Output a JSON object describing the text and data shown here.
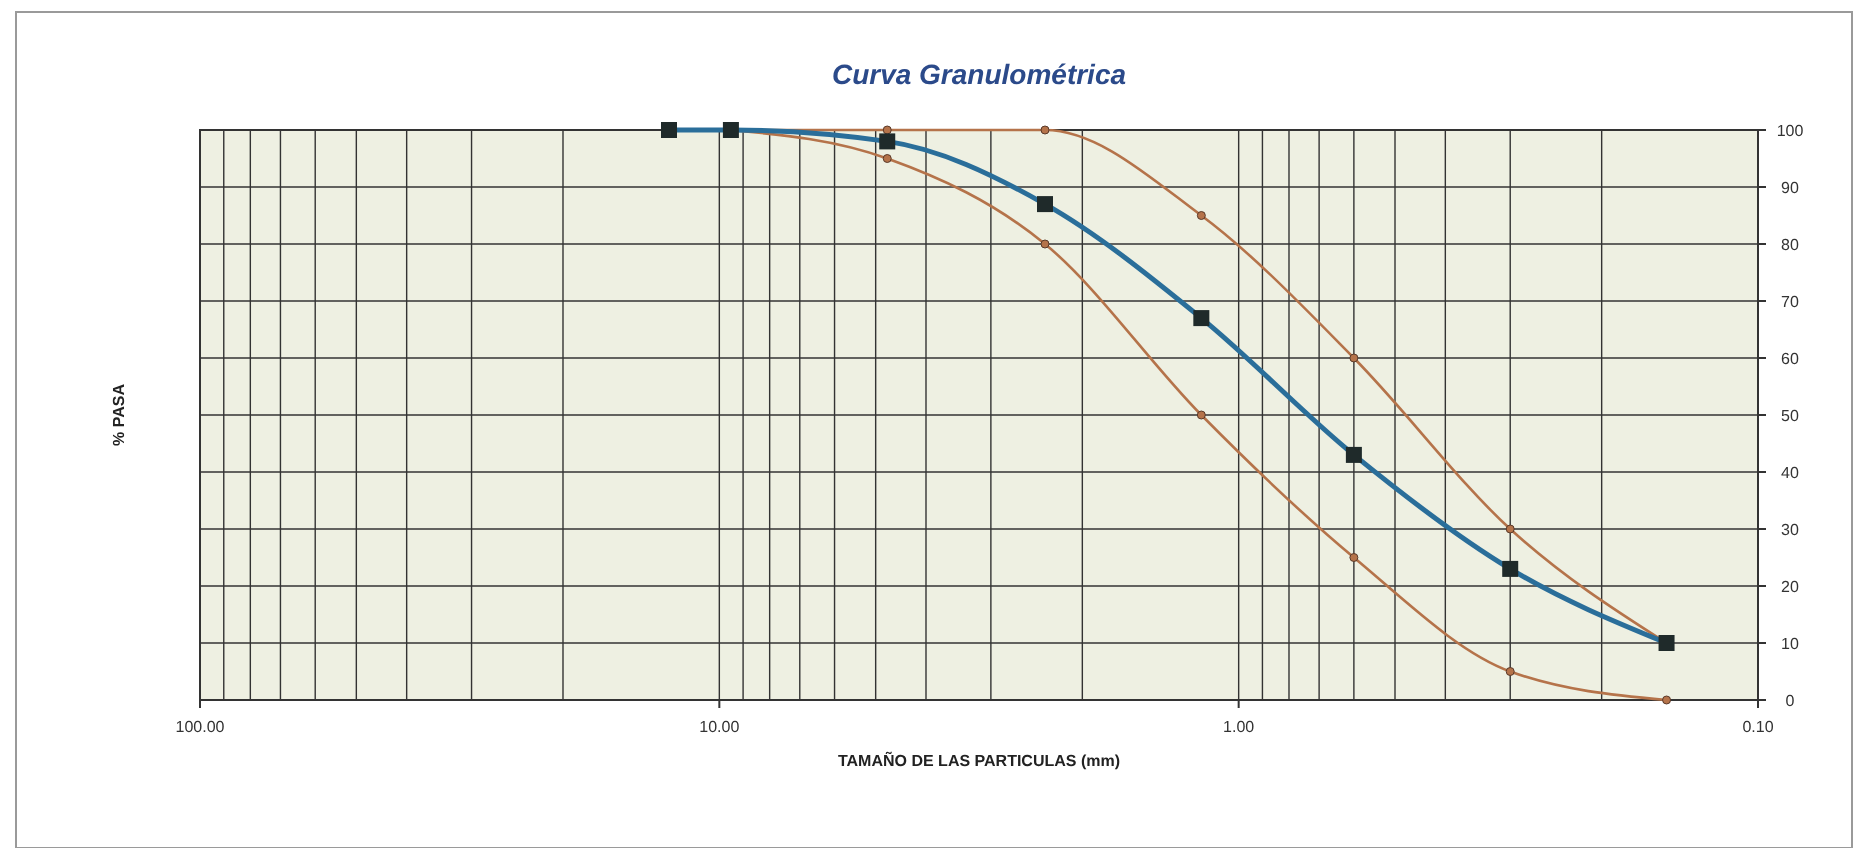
{
  "chart_data": {
    "type": "line",
    "title": "Curva Granulométrica",
    "xlabel": "TAMAÑO DE LAS PARTICULAS (mm)",
    "ylabel": "% PASA",
    "log": "x",
    "xlim": [
      100,
      0.1
    ],
    "xticks": [
      {
        "value": 100,
        "label": "100.00"
      },
      {
        "value": 10,
        "label": "10.00"
      },
      {
        "value": 1,
        "label": "1.00"
      },
      {
        "value": 0.1,
        "label": "0.10"
      }
    ],
    "ylim": [
      0,
      100
    ],
    "yticks": [
      0,
      10,
      20,
      30,
      40,
      50,
      60,
      70,
      80,
      90,
      100
    ],
    "grid": true,
    "series": [
      {
        "color": "#b5734a",
        "marker": "circle",
        "x": [
          9.5,
          4.75,
          2.36,
          1.18,
          0.6,
          0.3,
          0.15
        ],
        "values": [
          100,
          100,
          100,
          85,
          60,
          30,
          10
        ]
      },
      {
        "color": "#b5734a",
        "marker": "circle",
        "x": [
          9.5,
          4.75,
          2.36,
          1.18,
          0.6,
          0.3,
          0.15
        ],
        "values": [
          100,
          95,
          80,
          50,
          25,
          5,
          0
        ]
      },
      {
        "color": "#2a6e9a",
        "marker": "square",
        "x": [
          12.5,
          9.5,
          4.75,
          2.36,
          1.18,
          0.6,
          0.3,
          0.15
        ],
        "values": [
          100,
          100,
          98,
          87,
          67,
          43,
          23,
          10
        ]
      }
    ]
  }
}
